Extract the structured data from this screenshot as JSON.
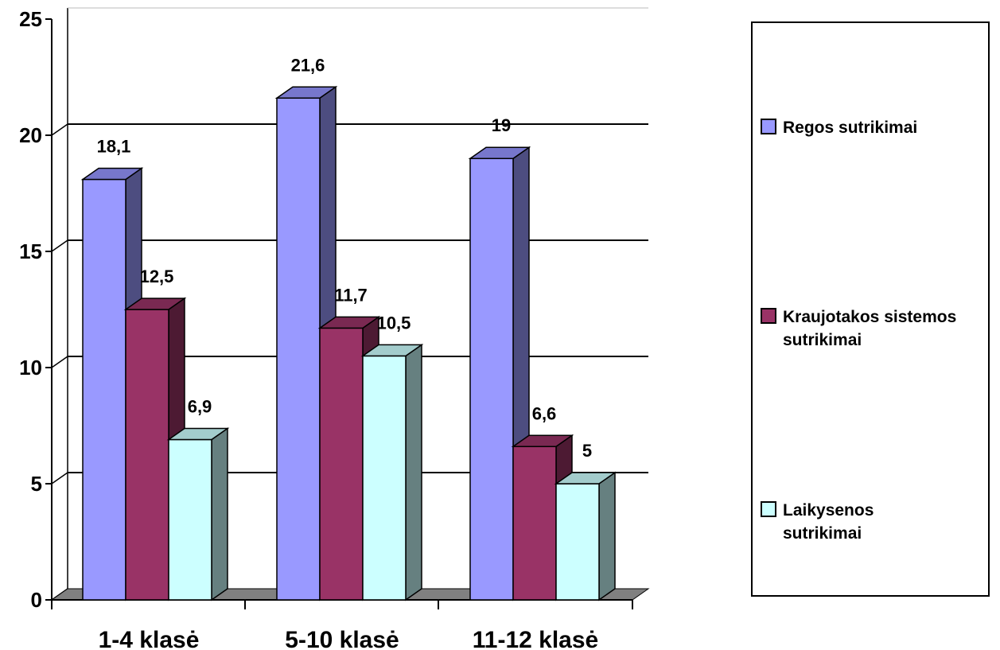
{
  "chart_data": {
    "type": "bar",
    "title": "",
    "xlabel": "",
    "ylabel": "",
    "categories": [
      "1-4 klasė",
      "5-10 klasė",
      "11-12 klasė"
    ],
    "ylim": [
      0,
      25
    ],
    "yticks": [
      "0",
      "5",
      "10",
      "15",
      "20",
      "25"
    ],
    "grid": true,
    "legend_position": "right",
    "series": [
      {
        "name": "Regos sutrikimai",
        "values": [
          18.1,
          21.6,
          19
        ],
        "labels": [
          "18,1",
          "21,6",
          "19"
        ],
        "color": "#9999FF",
        "top_color": "#7777CC",
        "side_color": "#4D4D80"
      },
      {
        "name": "Kraujotakos sistemos sutrikimai",
        "values": [
          12.5,
          11.7,
          6.6
        ],
        "labels": [
          "12,5",
          "11,7",
          "6,6"
        ],
        "color": "#993366",
        "top_color": "#7A2952",
        "side_color": "#4D1A33"
      },
      {
        "name": "Laikysenos sutrikimai",
        "values": [
          6.9,
          10.5,
          5
        ],
        "labels": [
          "6,9",
          "10,5",
          "5"
        ],
        "color": "#CCFFFF",
        "top_color": "#A3CCCC",
        "side_color": "#668080"
      }
    ]
  }
}
